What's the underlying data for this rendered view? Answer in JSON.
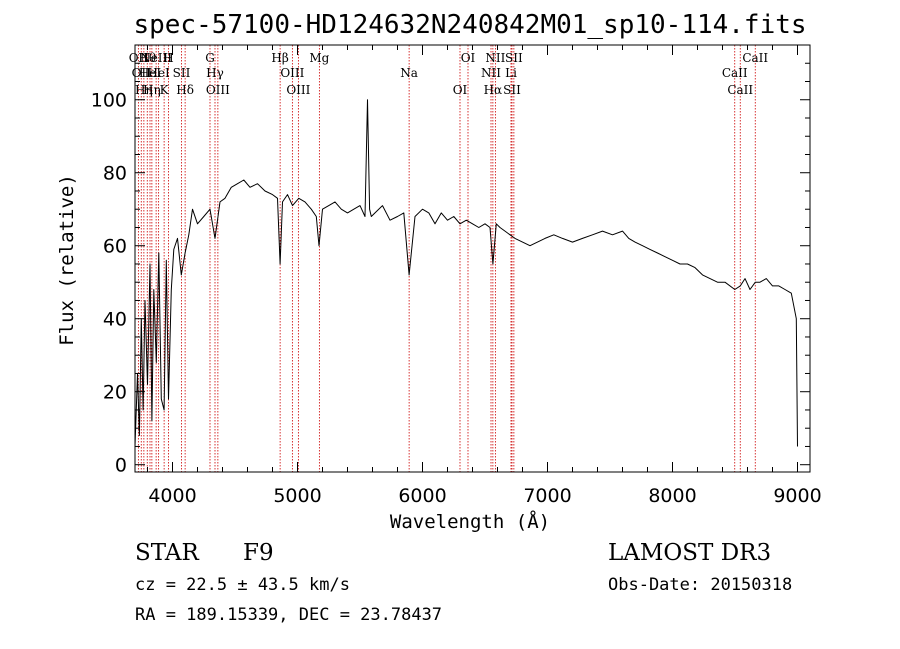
{
  "chart_data": {
    "type": "line",
    "title": "spec-57100-HD124632N240842M01_sp10-114.fits",
    "xlabel": "Wavelength (Å)",
    "ylabel": "Flux (relative)",
    "xlim": [
      3700,
      9100
    ],
    "ylim": [
      -2,
      115
    ],
    "xticks": [
      4000,
      5000,
      6000,
      7000,
      8000,
      9000
    ],
    "yticks": [
      0,
      20,
      40,
      60,
      80,
      100
    ],
    "series": [
      {
        "name": "spectrum",
        "x": [
          3700,
          3720,
          3735,
          3750,
          3765,
          3780,
          3800,
          3820,
          3835,
          3850,
          3870,
          3890,
          3910,
          3933,
          3950,
          3968,
          3990,
          4010,
          4040,
          4070,
          4101,
          4130,
          4160,
          4200,
          4250,
          4300,
          4340,
          4380,
          4420,
          4470,
          4520,
          4570,
          4620,
          4680,
          4740,
          4800,
          4840,
          4861,
          4880,
          4920,
          4960,
          5010,
          5060,
          5110,
          5150,
          5172,
          5200,
          5250,
          5300,
          5350,
          5400,
          5450,
          5500,
          5540,
          5560,
          5577,
          5590,
          5620,
          5680,
          5740,
          5800,
          5850,
          5893,
          5940,
          6000,
          6050,
          6100,
          6150,
          6200,
          6250,
          6300,
          6350,
          6400,
          6450,
          6500,
          6540,
          6563,
          6590,
          6620,
          6660,
          6700,
          6740,
          6800,
          6860,
          6920,
          6980,
          7050,
          7120,
          7200,
          7280,
          7360,
          7440,
          7520,
          7600,
          7650,
          7700,
          7760,
          7820,
          7880,
          7940,
          8000,
          8060,
          8120,
          8180,
          8240,
          8300,
          8360,
          8420,
          8498,
          8542,
          8580,
          8620,
          8662,
          8700,
          8750,
          8800,
          8850,
          8900,
          8950,
          8990,
          9000
        ],
        "y": [
          5,
          25,
          8,
          40,
          15,
          45,
          22,
          55,
          12,
          48,
          28,
          58,
          18,
          15,
          56,
          18,
          48,
          59,
          62,
          52,
          58,
          63,
          70,
          66,
          68,
          70,
          62,
          72,
          73,
          76,
          77,
          78,
          76,
          77,
          75,
          74,
          73,
          55,
          72,
          74,
          71,
          73,
          72,
          70,
          68,
          60,
          70,
          71,
          72,
          70,
          69,
          70,
          71,
          68,
          100,
          70,
          68,
          69,
          71,
          67,
          68,
          69,
          52,
          68,
          70,
          69,
          66,
          69,
          67,
          68,
          66,
          67,
          66,
          65,
          66,
          65,
          55,
          66,
          65,
          64,
          63,
          62,
          61,
          60,
          61,
          62,
          63,
          62,
          61,
          62,
          63,
          64,
          63,
          64,
          62,
          61,
          60,
          59,
          58,
          57,
          56,
          55,
          55,
          54,
          52,
          51,
          50,
          50,
          48,
          49,
          51,
          48,
          50,
          50,
          51,
          49,
          49,
          48,
          47,
          40,
          5
        ]
      }
    ],
    "line_markers": [
      {
        "wl": 3727,
        "label": "OII"
      },
      {
        "wl": 3750,
        "label": "OII"
      },
      {
        "wl": 3771,
        "label": "Hη"
      },
      {
        "wl": 3798,
        "label": "Hθ"
      },
      {
        "wl": 3820,
        "label": "HeI"
      },
      {
        "wl": 3835,
        "label": "Hη"
      },
      {
        "wl": 3869,
        "label": "NeIII"
      },
      {
        "wl": 3889,
        "label": "HeI"
      },
      {
        "wl": 3933,
        "label": "K"
      },
      {
        "wl": 3968,
        "label": "H"
      },
      {
        "wl": 4072,
        "label": "SII"
      },
      {
        "wl": 4101,
        "label": "Hδ"
      },
      {
        "wl": 4300,
        "label": "G"
      },
      {
        "wl": 4340,
        "label": "Hγ"
      },
      {
        "wl": 4363,
        "label": "OIII"
      },
      {
        "wl": 4861,
        "label": "Hβ"
      },
      {
        "wl": 4959,
        "label": "OIII"
      },
      {
        "wl": 5007,
        "label": "OIII"
      },
      {
        "wl": 5175,
        "label": "Mg"
      },
      {
        "wl": 5893,
        "label": "Na"
      },
      {
        "wl": 6300,
        "label": "OI"
      },
      {
        "wl": 6364,
        "label": "OI"
      },
      {
        "wl": 6548,
        "label": "NII"
      },
      {
        "wl": 6563,
        "label": "Hα"
      },
      {
        "wl": 6583,
        "label": "NII"
      },
      {
        "wl": 6708,
        "label": "Li"
      },
      {
        "wl": 6716,
        "label": "SII"
      },
      {
        "wl": 6731,
        "label": "SII"
      },
      {
        "wl": 8498,
        "label": "CaII"
      },
      {
        "wl": 8542,
        "label": "CaII"
      },
      {
        "wl": 8662,
        "label": "CaII"
      }
    ]
  },
  "info": {
    "class_label": "STAR",
    "subclass": "F9",
    "survey": "LAMOST DR3",
    "redshift_text": "cz = 22.5 ± 43.5 km/s",
    "obs_date": "Obs-Date: 20150318",
    "coords": "RA = 189.15339, DEC =  23.78437"
  },
  "colors": {
    "marker": "#cc0000",
    "ink": "#000000"
  }
}
